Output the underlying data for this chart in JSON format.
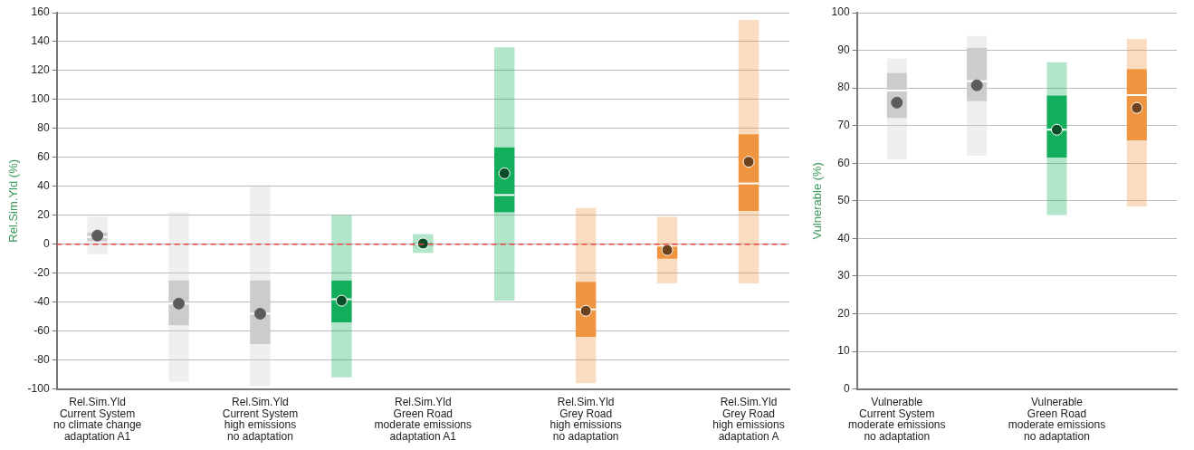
{
  "chart_data": [
    {
      "type": "box",
      "ylabel": "Rel.Sim.Yld (%)",
      "categories": [
        "Rel.Sim.Yld\nCurrent System\nno climate change\nadaptation A1",
        null,
        "Rel.Sim.Yld\nCurrent System\nhigh emissions\nno adaptation",
        null,
        "Rel.Sim.Yld\nGreen Road\nmoderate emissions\nadaptation A1",
        null,
        "Rel.Sim.Yld\nGrey Road\nhigh emissions\nno adaptation",
        null,
        "Rel.Sim.Yld\nGrey Road\nhigh emissions\nadaptation A"
      ],
      "colors": [
        "#cccccc",
        "#cccccc",
        "#cccccc",
        "#13ae5b",
        "#13ae5b",
        "#13ae5b",
        "#f0953f",
        "#f0953f",
        "#f0953f"
      ],
      "boxes": [
        {
          "low": -7,
          "q1": 2,
          "median": 5,
          "q3": 8,
          "high": 19,
          "mean": 6
        },
        {
          "low": -95,
          "q1": -56,
          "median": -41,
          "q3": -25,
          "high": 22,
          "mean": -41
        },
        {
          "low": -98,
          "q1": -69,
          "median": -48,
          "q3": -25,
          "high": 41,
          "mean": -48
        },
        {
          "low": -92,
          "q1": -54,
          "median": -38,
          "q3": -25,
          "high": 20,
          "mean": -39
        },
        {
          "low": -6,
          "q1": -1,
          "median": 0,
          "q3": 1,
          "high": 7,
          "mean": 0.5
        },
        {
          "low": -39,
          "q1": 22,
          "median": 34,
          "q3": 67,
          "high": 136,
          "mean": 49
        },
        {
          "low": -96,
          "q1": -64,
          "median": -45,
          "q3": -26,
          "high": 25,
          "mean": -46
        },
        {
          "low": -27,
          "q1": -10,
          "median": -1,
          "q3": 0,
          "high": 19,
          "mean": -4
        },
        {
          "low": -27,
          "q1": 23,
          "median": 42,
          "q3": 76,
          "high": 155,
          "mean": 57
        }
      ],
      "ylim": [
        -100,
        160
      ],
      "yticks": [
        -100,
        -80,
        -60,
        -40,
        -20,
        0,
        20,
        40,
        60,
        80,
        100,
        120,
        140,
        160
      ],
      "ref_lines": [
        {
          "axis": "y",
          "value": 0,
          "color": "#e8413c",
          "line_style": "dashed"
        }
      ],
      "grid": "y",
      "marker": "circle"
    },
    {
      "type": "box",
      "ylabel": "Vulnerable (%)",
      "categories": [
        "Vulnerable\nCurrent System\nmoderate emissions\nno adaptation",
        null,
        "Vulnerable\nGreen Road\nmoderate emissions\nno adaptation",
        null
      ],
      "colors": [
        "#cccccc",
        "#cccccc",
        "#13ae5b",
        "#f0953f"
      ],
      "boxes": [
        {
          "low": 61,
          "q1": 72,
          "median": 79.3,
          "q3": 84,
          "high": 87.8,
          "mean": 76.1
        },
        {
          "low": 62,
          "q1": 76.5,
          "median": 81.8,
          "q3": 90.7,
          "high": 93.8,
          "mean": 80.7
        },
        {
          "low": 46.2,
          "q1": 61.5,
          "median": 68.9,
          "q3": 78,
          "high": 86.8,
          "mean": 68.9
        },
        {
          "low": 48.5,
          "q1": 66.1,
          "median": 78.1,
          "q3": 85,
          "high": 93,
          "mean": 74.7
        }
      ],
      "ylim": [
        0,
        100
      ],
      "yticks": [
        0,
        10,
        20,
        30,
        40,
        50,
        60,
        70,
        80,
        90,
        100
      ],
      "grid": "y",
      "marker": "circle"
    }
  ]
}
